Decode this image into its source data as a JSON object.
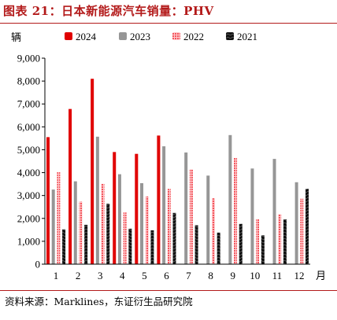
{
  "title": "图表 21：日本新能源汽车销量：PHV",
  "source": "资料来源：Marklines，东证衍生品研究院",
  "chart_data": {
    "type": "bar",
    "ylabel": "辆",
    "xlabel": "月",
    "ylim": [
      0,
      9000
    ],
    "yticks": [
      "0",
      "1,000",
      "2,000",
      "3,000",
      "4,000",
      "5,000",
      "6,000",
      "7,000",
      "8,000",
      "9,000"
    ],
    "categories": [
      "1",
      "2",
      "3",
      "4",
      "5",
      "6",
      "7",
      "8",
      "9",
      "10",
      "11",
      "12"
    ],
    "legend_position": "top",
    "series": [
      {
        "name": "2024",
        "color": "#e00000",
        "pattern": "solid",
        "values": [
          5550,
          6780,
          8100,
          4900,
          4820,
          5620,
          null,
          null,
          null,
          null,
          null,
          null
        ]
      },
      {
        "name": "2023",
        "color": "#969696",
        "pattern": "solid",
        "values": [
          3260,
          3620,
          5570,
          3930,
          3540,
          5150,
          4880,
          3870,
          5640,
          4180,
          4600,
          3580
        ]
      },
      {
        "name": "2022",
        "color": "#f2555c",
        "pattern": "dotted",
        "values": [
          4020,
          2730,
          3510,
          2260,
          2960,
          3290,
          4140,
          2880,
          4640,
          1960,
          2180,
          2860
        ]
      },
      {
        "name": "2021",
        "color": "#111111",
        "pattern": "wavy",
        "values": [
          1520,
          1720,
          2640,
          1550,
          1480,
          2240,
          1700,
          1380,
          1760,
          1260,
          1960,
          3290
        ]
      }
    ]
  }
}
